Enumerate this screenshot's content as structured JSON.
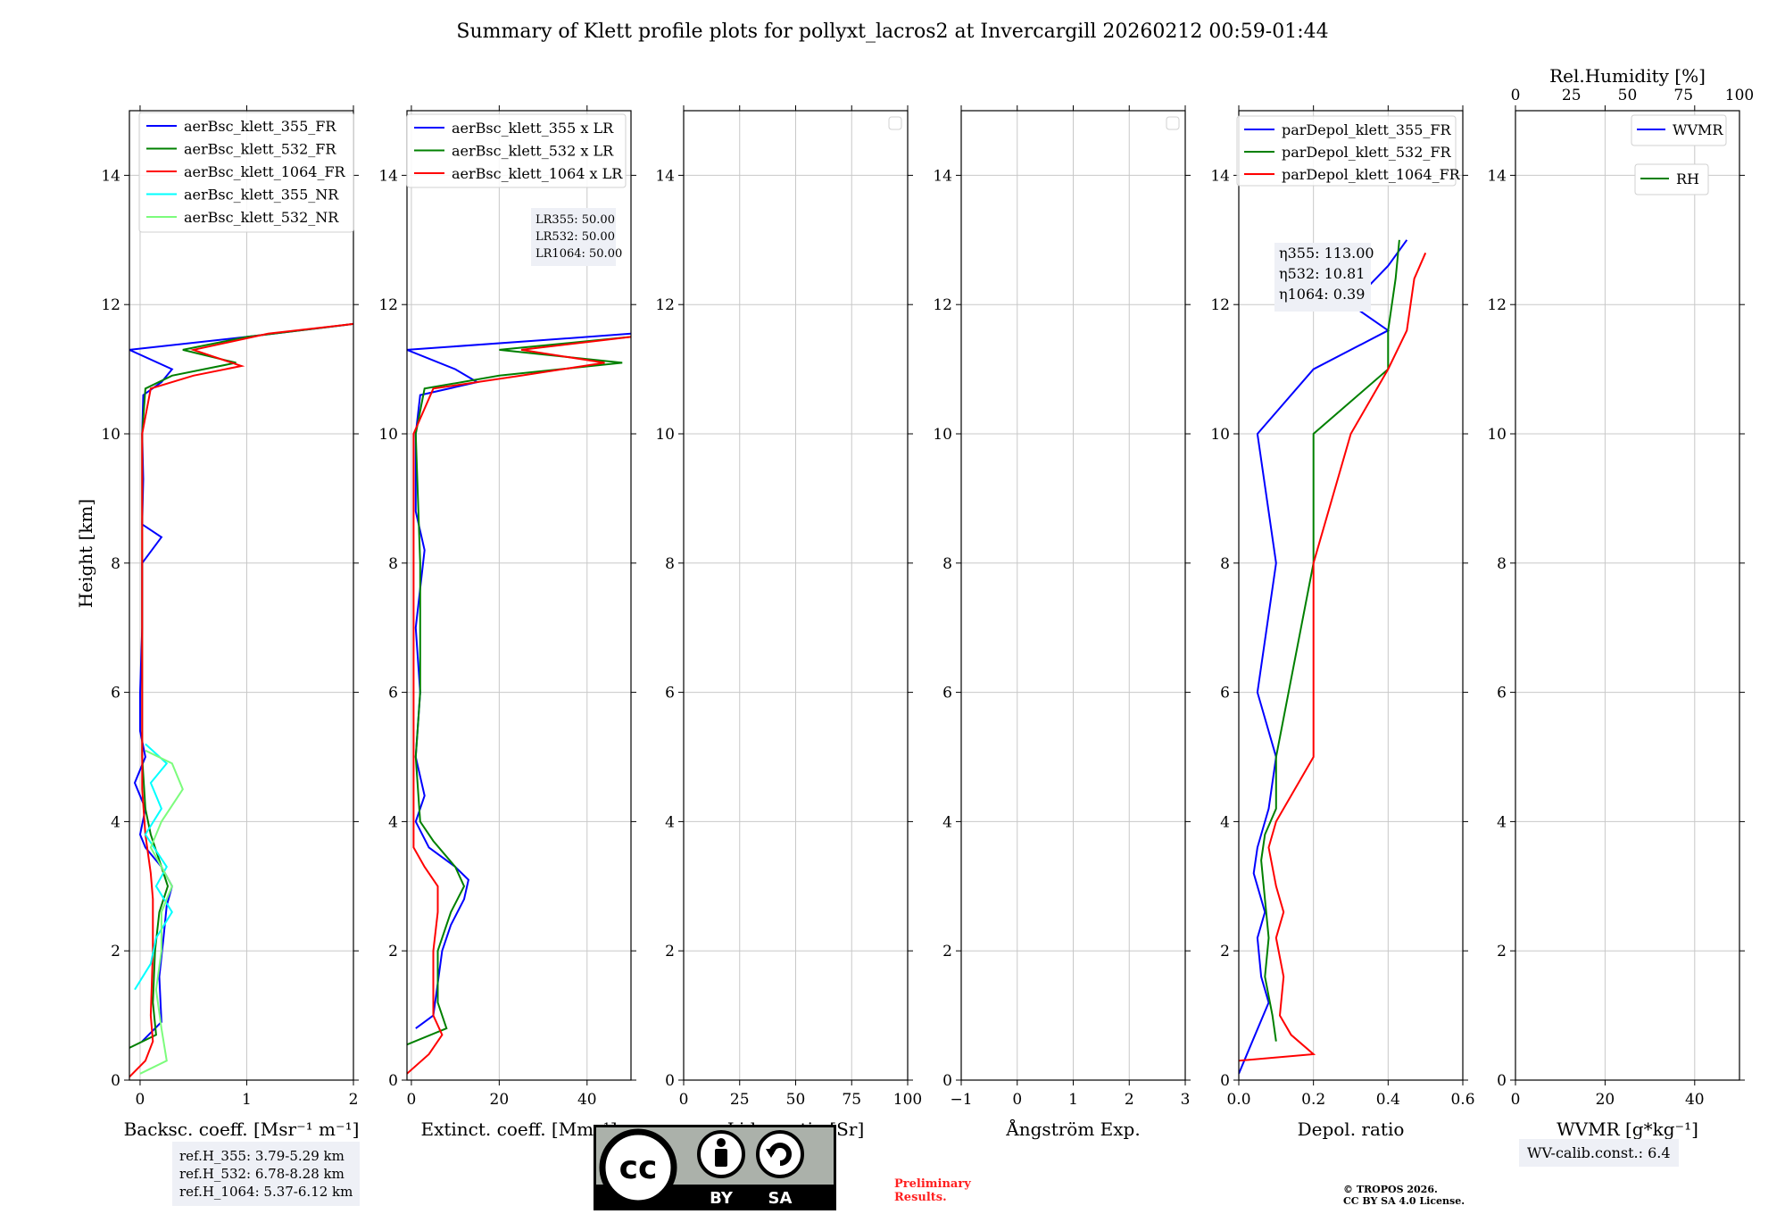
{
  "figure_title": "Summary of Klett profile plots for pollyxt_lacros2 at Invercargill 20260212 00:59-01:44",
  "chart_data": [
    {
      "id": "backscatter",
      "type": "line",
      "xlabel": "Backsc. coeff. [Msr⁻¹ m⁻¹]",
      "ylabel": "Height [km]",
      "xlim": [
        -0.1,
        2
      ],
      "ylim": [
        0,
        15
      ],
      "xticks": [
        0,
        1,
        2
      ],
      "xtick_labels": [
        "0",
        "1",
        "2"
      ],
      "yticks": [
        0,
        2,
        4,
        6,
        8,
        10,
        12,
        14
      ],
      "ytick_labels": [
        "0",
        "2",
        "4",
        "6",
        "8",
        "10",
        "12",
        "14"
      ],
      "legend": [
        "aerBsc_klett_355_FR",
        "aerBsc_klett_532_FR",
        "aerBsc_klett_1064_FR",
        "aerBsc_klett_355_NR",
        "aerBsc_klett_532_NR"
      ],
      "series": [
        {
          "name": "aerBsc_klett_355_FR",
          "color": "#0000ff",
          "points": [
            [
              0.02,
              0.6
            ],
            [
              0.2,
              0.9
            ],
            [
              0.18,
              1.6
            ],
            [
              0.22,
              2.2
            ],
            [
              0.25,
              2.7
            ],
            [
              0.3,
              3.0
            ],
            [
              0.2,
              3.3
            ],
            [
              0.05,
              3.6
            ],
            [
              0.0,
              3.8
            ],
            [
              0.05,
              4.2
            ],
            [
              -0.05,
              4.6
            ],
            [
              0.05,
              5.0
            ],
            [
              0.0,
              5.4
            ],
            [
              0.0,
              6.0
            ],
            [
              0.02,
              7.0
            ],
            [
              0.02,
              8.0
            ],
            [
              0.2,
              8.4
            ],
            [
              0.02,
              8.6
            ],
            [
              0.03,
              9.3
            ],
            [
              0.02,
              10.0
            ],
            [
              0.03,
              10.6
            ],
            [
              0.2,
              10.8
            ],
            [
              0.3,
              11.0
            ],
            [
              -0.1,
              11.3
            ],
            [
              1.0,
              11.5
            ],
            [
              2.0,
              11.7
            ]
          ]
        },
        {
          "name": "aerBsc_klett_532_FR",
          "color": "#008000",
          "points": [
            [
              -0.1,
              0.5
            ],
            [
              0.15,
              0.7
            ],
            [
              0.12,
              1.2
            ],
            [
              0.14,
              2.0
            ],
            [
              0.18,
              2.6
            ],
            [
              0.26,
              3.0
            ],
            [
              0.2,
              3.3
            ],
            [
              0.1,
              3.8
            ],
            [
              0.05,
              4.2
            ],
            [
              0.02,
              5.0
            ],
            [
              0.02,
              6.0
            ],
            [
              0.02,
              8.0
            ],
            [
              0.02,
              10.0
            ],
            [
              0.05,
              10.7
            ],
            [
              0.3,
              10.9
            ],
            [
              0.9,
              11.1
            ],
            [
              0.4,
              11.3
            ],
            [
              1.0,
              11.5
            ],
            [
              2.0,
              11.7
            ]
          ]
        },
        {
          "name": "aerBsc_klett_1064_FR",
          "color": "#ff0000",
          "points": [
            [
              -0.1,
              0.05
            ],
            [
              0.05,
              0.3
            ],
            [
              0.12,
              0.6
            ],
            [
              0.1,
              1.0
            ],
            [
              0.12,
              2.0
            ],
            [
              0.12,
              2.8
            ],
            [
              0.1,
              3.2
            ],
            [
              0.05,
              3.8
            ],
            [
              0.02,
              4.5
            ],
            [
              0.02,
              6.0
            ],
            [
              0.02,
              8.0
            ],
            [
              0.02,
              10.0
            ],
            [
              0.1,
              10.7
            ],
            [
              0.5,
              10.9
            ],
            [
              0.95,
              11.05
            ],
            [
              0.5,
              11.3
            ],
            [
              1.2,
              11.55
            ],
            [
              2.0,
              11.7
            ]
          ]
        },
        {
          "name": "aerBsc_klett_355_NR",
          "color": "#00ffff",
          "points": [
            [
              -0.05,
              1.4
            ],
            [
              0.1,
              1.8
            ],
            [
              0.15,
              2.2
            ],
            [
              0.3,
              2.6
            ],
            [
              0.15,
              3.0
            ],
            [
              0.25,
              3.3
            ],
            [
              0.05,
              3.8
            ],
            [
              0.2,
              4.2
            ],
            [
              0.1,
              4.6
            ],
            [
              0.25,
              4.9
            ],
            [
              0.05,
              5.2
            ]
          ]
        },
        {
          "name": "aerBsc_klett_532_NR",
          "color": "#7cfc7c",
          "points": [
            [
              0.0,
              0.1
            ],
            [
              0.25,
              0.3
            ],
            [
              0.2,
              0.8
            ],
            [
              0.15,
              1.4
            ],
            [
              0.2,
              2.0
            ],
            [
              0.2,
              2.6
            ],
            [
              0.3,
              3.0
            ],
            [
              0.1,
              3.6
            ],
            [
              0.2,
              4.0
            ],
            [
              0.4,
              4.5
            ],
            [
              0.3,
              4.9
            ],
            [
              0.05,
              5.1
            ]
          ]
        }
      ]
    },
    {
      "id": "extinction",
      "type": "line",
      "xlabel": "Extinct. coeff. [Mm⁻¹]",
      "xlim": [
        -1,
        50
      ],
      "ylim": [
        0,
        15
      ],
      "xticks": [
        0,
        20,
        40
      ],
      "xtick_labels": [
        "0",
        "20",
        "40"
      ],
      "yticks": [
        0,
        2,
        4,
        6,
        8,
        10,
        12,
        14
      ],
      "ytick_labels": [
        "0",
        "2",
        "4",
        "6",
        "8",
        "10",
        "12",
        "14"
      ],
      "legend": [
        "aerBsc_klett_355 x LR",
        "aerBsc_klett_532 x LR",
        "aerBsc_klett_1064 x LR"
      ],
      "annotation": [
        "LR355: 50.00",
        "LR532: 50.00",
        "LR1064: 50.00"
      ],
      "series": [
        {
          "name": "aerBsc_klett_355 x LR",
          "color": "#0000ff",
          "points": [
            [
              1,
              0.8
            ],
            [
              5,
              1.0
            ],
            [
              6,
              1.5
            ],
            [
              7,
              2.0
            ],
            [
              9,
              2.4
            ],
            [
              12,
              2.8
            ],
            [
              13,
              3.1
            ],
            [
              10,
              3.3
            ],
            [
              4,
              3.6
            ],
            [
              1,
              4.0
            ],
            [
              3,
              4.4
            ],
            [
              1,
              5.0
            ],
            [
              2,
              6.0
            ],
            [
              1,
              7.0
            ],
            [
              3,
              8.2
            ],
            [
              1,
              8.8
            ],
            [
              1,
              10.0
            ],
            [
              2,
              10.6
            ],
            [
              15,
              10.8
            ],
            [
              10,
              11.0
            ],
            [
              -1,
              11.3
            ],
            [
              30,
              11.45
            ],
            [
              50,
              11.55
            ]
          ]
        },
        {
          "name": "aerBsc_klett_532 x LR",
          "color": "#008000",
          "points": [
            [
              -1,
              0.55
            ],
            [
              8,
              0.8
            ],
            [
              6,
              1.2
            ],
            [
              6,
              2.0
            ],
            [
              9,
              2.6
            ],
            [
              12,
              3.0
            ],
            [
              10,
              3.3
            ],
            [
              5,
              3.7
            ],
            [
              2,
              4.0
            ],
            [
              1,
              5.0
            ],
            [
              2,
              6.0
            ],
            [
              2,
              8.0
            ],
            [
              1,
              10.0
            ],
            [
              3,
              10.7
            ],
            [
              20,
              10.9
            ],
            [
              48,
              11.1
            ],
            [
              20,
              11.3
            ],
            [
              50,
              11.5
            ]
          ]
        },
        {
          "name": "aerBsc_klett_1064 x LR",
          "color": "#ff0000",
          "points": [
            [
              -1,
              0.1
            ],
            [
              4,
              0.4
            ],
            [
              7,
              0.7
            ],
            [
              5,
              1.0
            ],
            [
              5,
              2.0
            ],
            [
              6,
              2.6
            ],
            [
              6,
              3.0
            ],
            [
              3,
              3.3
            ],
            [
              0.5,
              3.6
            ],
            [
              0.5,
              5.0
            ],
            [
              0.5,
              8.0
            ],
            [
              0.5,
              10.0
            ],
            [
              5,
              10.7
            ],
            [
              25,
              10.9
            ],
            [
              44,
              11.1
            ],
            [
              25,
              11.3
            ],
            [
              50,
              11.5
            ]
          ]
        }
      ]
    },
    {
      "id": "lidar_ratio",
      "type": "line",
      "xlabel": "Lidar ratio [Sr]",
      "xlim": [
        0,
        100
      ],
      "ylim": [
        0,
        15
      ],
      "xticks": [
        0,
        25,
        50,
        75,
        100
      ],
      "xtick_labels": [
        "0",
        "25",
        "50",
        "75",
        "100"
      ],
      "yticks": [
        0,
        2,
        4,
        6,
        8,
        10,
        12,
        14
      ],
      "ytick_labels": [
        "0",
        "2",
        "4",
        "6",
        "8",
        "10",
        "12",
        "14"
      ],
      "series": []
    },
    {
      "id": "angstrom",
      "type": "line",
      "xlabel": "Ångström Exp.",
      "xlim": [
        -1,
        3
      ],
      "ylim": [
        0,
        15
      ],
      "xticks": [
        -1,
        0,
        1,
        2,
        3
      ],
      "xtick_labels": [
        "−1",
        "0",
        "1",
        "2",
        "3"
      ],
      "yticks": [
        0,
        2,
        4,
        6,
        8,
        10,
        12,
        14
      ],
      "ytick_labels": [
        "0",
        "2",
        "4",
        "6",
        "8",
        "10",
        "12",
        "14"
      ],
      "series": []
    },
    {
      "id": "depol",
      "type": "line",
      "xlabel": "Depol. ratio",
      "xlim": [
        0,
        0.6
      ],
      "ylim": [
        0,
        15
      ],
      "xticks": [
        0,
        0.2,
        0.4,
        0.6
      ],
      "xtick_labels": [
        "0.0",
        "0.2",
        "0.4",
        "0.6"
      ],
      "yticks": [
        0,
        2,
        4,
        6,
        8,
        10,
        12,
        14
      ],
      "ytick_labels": [
        "0",
        "2",
        "4",
        "6",
        "8",
        "10",
        "12",
        "14"
      ],
      "legend": [
        "parDepol_klett_355_FR",
        "parDepol_klett_532_FR",
        "parDepol_klett_1064_FR"
      ],
      "annotation": [
        "η355: 113.00",
        "η532: 10.81",
        "η1064: 0.39"
      ],
      "series": [
        {
          "name": "parDepol_klett_355_FR",
          "color": "#0000ff",
          "points": [
            [
              0.0,
              0.1
            ],
            [
              0.08,
              1.2
            ],
            [
              0.06,
              1.6
            ],
            [
              0.05,
              2.2
            ],
            [
              0.07,
              2.6
            ],
            [
              0.04,
              3.2
            ],
            [
              0.05,
              3.6
            ],
            [
              0.08,
              4.2
            ],
            [
              0.1,
              5.0
            ],
            [
              0.05,
              6.0
            ],
            [
              0.1,
              8.0
            ],
            [
              0.05,
              10.0
            ],
            [
              0.2,
              11.0
            ],
            [
              0.4,
              11.6
            ],
            [
              0.3,
              12.0
            ],
            [
              0.4,
              12.6
            ],
            [
              0.45,
              13.0
            ]
          ]
        },
        {
          "name": "parDepol_klett_532_FR",
          "color": "#008000",
          "points": [
            [
              0.1,
              0.6
            ],
            [
              0.09,
              1.0
            ],
            [
              0.07,
              1.6
            ],
            [
              0.08,
              2.2
            ],
            [
              0.07,
              2.8
            ],
            [
              0.06,
              3.4
            ],
            [
              0.07,
              3.8
            ],
            [
              0.1,
              4.2
            ],
            [
              0.1,
              5.0
            ],
            [
              0.2,
              8.0
            ],
            [
              0.2,
              10.0
            ],
            [
              0.4,
              11.0
            ],
            [
              0.4,
              11.6
            ],
            [
              0.42,
              12.4
            ],
            [
              0.43,
              13.0
            ]
          ]
        },
        {
          "name": "parDepol_klett_1064_FR",
          "color": "#ff0000",
          "points": [
            [
              0.0,
              0.3
            ],
            [
              0.2,
              0.4
            ],
            [
              0.14,
              0.7
            ],
            [
              0.11,
              1.0
            ],
            [
              0.12,
              1.6
            ],
            [
              0.1,
              2.2
            ],
            [
              0.12,
              2.6
            ],
            [
              0.1,
              3.0
            ],
            [
              0.08,
              3.6
            ],
            [
              0.1,
              4.0
            ],
            [
              0.2,
              5.0
            ],
            [
              0.2,
              8.0
            ],
            [
              0.3,
              10.0
            ],
            [
              0.4,
              11.0
            ],
            [
              0.45,
              11.6
            ],
            [
              0.47,
              12.4
            ],
            [
              0.5,
              12.8
            ]
          ]
        }
      ]
    },
    {
      "id": "wvmr",
      "type": "line",
      "xlabel": "WVMR [g*kg⁻¹]",
      "top_xlabel": "Rel.Humidity [%]",
      "xlim": [
        0,
        50
      ],
      "top_xlim": [
        0,
        100
      ],
      "ylim": [
        0,
        15
      ],
      "xticks": [
        0,
        20,
        40
      ],
      "xtick_labels": [
        "0",
        "20",
        "40"
      ],
      "top_xticks": [
        0,
        25,
        50,
        75,
        100
      ],
      "top_xtick_labels": [
        "0",
        "25",
        "50",
        "75",
        "100"
      ],
      "yticks": [
        0,
        2,
        4,
        6,
        8,
        10,
        12,
        14
      ],
      "ytick_labels": [
        "0",
        "2",
        "4",
        "6",
        "8",
        "10",
        "12",
        "14"
      ],
      "legend": [
        "WVMR",
        "RH"
      ],
      "series": []
    }
  ],
  "ref_heights": [
    "ref.H_355: 3.79-5.29 km",
    "ref.H_532: 6.78-8.28 km",
    "ref.H_1064: 5.37-6.12 km"
  ],
  "wv_calib": "WV-calib.const.: 6.4",
  "preliminary": [
    "Preliminary",
    "Results."
  ],
  "copyright": [
    "© TROPOS 2026.",
    "CC BY SA 4.0 License."
  ],
  "license_badge": {
    "cc": "cc",
    "by": "BY",
    "sa": "SA"
  }
}
